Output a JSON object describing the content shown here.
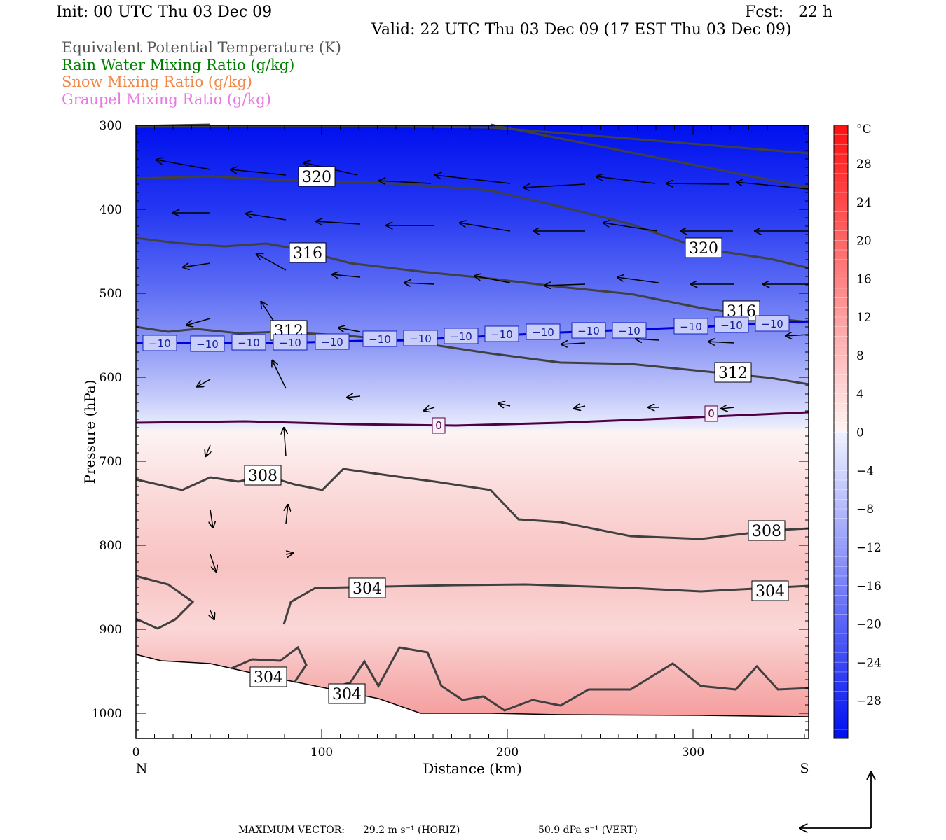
{
  "header": {
    "init": "Init: 00 UTC Thu 03 Dec 09",
    "fcst": "Fcst:   22 h",
    "valid": "Valid: 22 UTC Thu 03 Dec 09 (17 EST Thu 03 Dec 09)"
  },
  "legend": [
    {
      "label": "Equivalent Potential Temperature (K)",
      "color": "#555555"
    },
    {
      "label": "Rain Water Mixing Ratio (g/kg)",
      "color": "#008000"
    },
    {
      "label": "Snow Mixing Ratio (g/kg)",
      "color": "#f0884a"
    },
    {
      "label": "Graupel Mixing Ratio (g/kg)",
      "color": "#e878e0"
    }
  ],
  "chart_data": {
    "type": "heatmap",
    "xlabel": "Distance (km)",
    "ylabel": "Pressure (hPa)",
    "xlim": [
      0,
      362
    ],
    "ylim": [
      300,
      1030
    ],
    "x_ticks": [
      "0",
      "100",
      "200",
      "300"
    ],
    "y_ticks": [
      "300",
      "400",
      "500",
      "600",
      "700",
      "800",
      "900",
      "1000"
    ],
    "end_labels": {
      "left": "N",
      "right": "S"
    },
    "colorbar": {
      "unit": "°C",
      "ticks": [
        "28",
        "24",
        "20",
        "16",
        "12",
        "8",
        "4",
        "0",
        "−4",
        "−8",
        "−12",
        "−16",
        "−20",
        "−24",
        "−28"
      ],
      "cold_color": "#0010f0",
      "warm_color": "#ff1010"
    },
    "theta_e_contours": [
      {
        "value": 320,
        "labels": [
          "320",
          "320"
        ]
      },
      {
        "value": 316,
        "labels": [
          "316",
          "316"
        ]
      },
      {
        "value": 312,
        "labels": [
          "312",
          "312"
        ]
      },
      {
        "value": 308,
        "labels": [
          "308",
          "308"
        ]
      },
      {
        "value": 304,
        "labels": [
          "304",
          "304",
          "304",
          "304"
        ]
      }
    ],
    "temperature_contours": [
      {
        "value": -10,
        "label": "−10"
      },
      {
        "value": 0,
        "label": "0"
      }
    ],
    "freezing_level_hPa": 655,
    "minus10_level_hPa": 555
  },
  "footer": {
    "max_vector": "MAXIMUM VECTOR:",
    "horiz": "29.2 m s⁻¹ (HORIZ)",
    "vert": "50.9 dPa s⁻¹ (VERT)"
  }
}
